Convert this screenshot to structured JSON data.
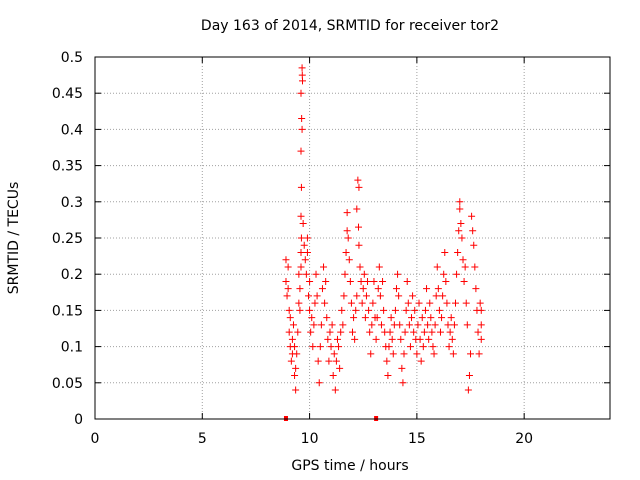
{
  "chart_data": {
    "type": "scatter",
    "title": "Day 163 of 2014, SRMTID for receiver tor2",
    "xlabel": "GPS time / hours",
    "ylabel": "SRMTID / TECUs",
    "xlim": [
      0,
      24
    ],
    "ylim": [
      0,
      0.5
    ],
    "x_ticks": [
      {
        "value": 0,
        "label": "0"
      },
      {
        "value": 5,
        "label": "5"
      },
      {
        "value": 10,
        "label": "10"
      },
      {
        "value": 15,
        "label": "15"
      },
      {
        "value": 20,
        "label": "20"
      }
    ],
    "y_ticks": [
      {
        "value": 0,
        "label": "0"
      },
      {
        "value": 0.05,
        "label": "0.05"
      },
      {
        "value": 0.1,
        "label": "0.1"
      },
      {
        "value": 0.15,
        "label": "0.15"
      },
      {
        "value": 0.2,
        "label": "0.2"
      },
      {
        "value": 0.25,
        "label": "0.25"
      },
      {
        "value": 0.3,
        "label": "0.3"
      },
      {
        "value": 0.35,
        "label": "0.35"
      },
      {
        "value": 0.4,
        "label": "0.4"
      },
      {
        "value": 0.45,
        "label": "0.45"
      },
      {
        "value": 0.5,
        "label": "0.5"
      }
    ],
    "grid": true,
    "marker": "+",
    "color": "#ff0000",
    "series": [
      {
        "points": [
          [
            8.9,
            0.22
          ],
          [
            8.9,
            0.19
          ],
          [
            8.95,
            0.17
          ],
          [
            9.0,
            0.21
          ],
          [
            9.0,
            0.18
          ],
          [
            9.05,
            0.15
          ],
          [
            9.05,
            0.12
          ],
          [
            9.1,
            0.1
          ],
          [
            9.1,
            0.14
          ],
          [
            9.15,
            0.08
          ],
          [
            9.2,
            0.11
          ],
          [
            9.2,
            0.09
          ],
          [
            9.25,
            0.13
          ],
          [
            9.3,
            0.06
          ],
          [
            9.3,
            0.1
          ],
          [
            9.35,
            0.04
          ],
          [
            9.35,
            0.07
          ],
          [
            9.4,
            0.09
          ],
          [
            9.45,
            0.12
          ],
          [
            9.5,
            0.16
          ],
          [
            9.5,
            0.2
          ],
          [
            9.55,
            0.15
          ],
          [
            9.55,
            0.18
          ],
          [
            9.6,
            0.23
          ],
          [
            9.6,
            0.21
          ],
          [
            9.62,
            0.25
          ],
          [
            9.65,
            0.485
          ],
          [
            9.66,
            0.475
          ],
          [
            9.67,
            0.467
          ],
          [
            9.6,
            0.45
          ],
          [
            9.63,
            0.415
          ],
          [
            9.65,
            0.4
          ],
          [
            9.6,
            0.37
          ],
          [
            9.62,
            0.32
          ],
          [
            9.6,
            0.28
          ],
          [
            9.7,
            0.27
          ],
          [
            9.75,
            0.24
          ],
          [
            9.8,
            0.22
          ],
          [
            9.85,
            0.2
          ],
          [
            9.9,
            0.25
          ],
          [
            9.9,
            0.23
          ],
          [
            9.95,
            0.17
          ],
          [
            10.0,
            0.15
          ],
          [
            10.0,
            0.19
          ],
          [
            10.05,
            0.12
          ],
          [
            10.1,
            0.14
          ],
          [
            10.15,
            0.1
          ],
          [
            10.2,
            0.13
          ],
          [
            10.25,
            0.16
          ],
          [
            10.3,
            0.2
          ],
          [
            10.35,
            0.17
          ],
          [
            10.4,
            0.08
          ],
          [
            10.45,
            0.05
          ],
          [
            10.5,
            0.1
          ],
          [
            10.55,
            0.13
          ],
          [
            10.6,
            0.18
          ],
          [
            10.65,
            0.21
          ],
          [
            10.7,
            0.16
          ],
          [
            10.75,
            0.19
          ],
          [
            10.8,
            0.14
          ],
          [
            10.85,
            0.11
          ],
          [
            10.9,
            0.08
          ],
          [
            10.95,
            0.12
          ],
          [
            11.0,
            0.1
          ],
          [
            11.05,
            0.13
          ],
          [
            11.1,
            0.06
          ],
          [
            11.15,
            0.09
          ],
          [
            11.2,
            0.04
          ],
          [
            11.25,
            0.08
          ],
          [
            11.3,
            0.11
          ],
          [
            11.35,
            0.1
          ],
          [
            11.4,
            0.07
          ],
          [
            11.45,
            0.12
          ],
          [
            11.5,
            0.15
          ],
          [
            11.55,
            0.13
          ],
          [
            11.6,
            0.17
          ],
          [
            11.65,
            0.2
          ],
          [
            11.7,
            0.23
          ],
          [
            11.75,
            0.26
          ],
          [
            11.75,
            0.285
          ],
          [
            11.8,
            0.25
          ],
          [
            11.85,
            0.22
          ],
          [
            11.9,
            0.19
          ],
          [
            11.95,
            0.16
          ],
          [
            12.0,
            0.12
          ],
          [
            12.05,
            0.14
          ],
          [
            12.1,
            0.11
          ],
          [
            12.15,
            0.15
          ],
          [
            12.2,
            0.17
          ],
          [
            12.2,
            0.29
          ],
          [
            12.25,
            0.33
          ],
          [
            12.3,
            0.32
          ],
          [
            12.28,
            0.265
          ],
          [
            12.3,
            0.24
          ],
          [
            12.35,
            0.21
          ],
          [
            12.4,
            0.19
          ],
          [
            12.45,
            0.16
          ],
          [
            12.5,
            0.18
          ],
          [
            12.55,
            0.2
          ],
          [
            12.6,
            0.14
          ],
          [
            12.65,
            0.17
          ],
          [
            12.7,
            0.19
          ],
          [
            12.75,
            0.15
          ],
          [
            12.8,
            0.12
          ],
          [
            12.85,
            0.09
          ],
          [
            12.9,
            0.13
          ],
          [
            12.95,
            0.16
          ],
          [
            13.0,
            0.19
          ],
          [
            13.05,
            0.14
          ],
          [
            13.1,
            0.11
          ],
          [
            13.15,
            0.14
          ],
          [
            13.2,
            0.18
          ],
          [
            13.25,
            0.21
          ],
          [
            13.3,
            0.17
          ],
          [
            13.35,
            0.13
          ],
          [
            13.4,
            0.19
          ],
          [
            13.45,
            0.15
          ],
          [
            13.5,
            0.12
          ],
          [
            13.55,
            0.1
          ],
          [
            13.6,
            0.08
          ],
          [
            13.65,
            0.06
          ],
          [
            13.7,
            0.1
          ],
          [
            13.75,
            0.12
          ],
          [
            13.8,
            0.14
          ],
          [
            13.85,
            0.11
          ],
          [
            13.9,
            0.09
          ],
          [
            13.95,
            0.13
          ],
          [
            14.0,
            0.15
          ],
          [
            14.05,
            0.18
          ],
          [
            14.1,
            0.2
          ],
          [
            14.15,
            0.17
          ],
          [
            14.2,
            0.13
          ],
          [
            14.25,
            0.11
          ],
          [
            14.3,
            0.07
          ],
          [
            14.35,
            0.05
          ],
          [
            14.4,
            0.09
          ],
          [
            14.45,
            0.12
          ],
          [
            14.5,
            0.15
          ],
          [
            14.55,
            0.19
          ],
          [
            14.6,
            0.16
          ],
          [
            14.65,
            0.13
          ],
          [
            14.7,
            0.1
          ],
          [
            14.75,
            0.14
          ],
          [
            14.8,
            0.17
          ],
          [
            14.85,
            0.12
          ],
          [
            14.9,
            0.15
          ],
          [
            14.95,
            0.11
          ],
          [
            15.0,
            0.09
          ],
          [
            15.05,
            0.13
          ],
          [
            15.1,
            0.16
          ],
          [
            15.15,
            0.11
          ],
          [
            15.2,
            0.08
          ],
          [
            15.25,
            0.14
          ],
          [
            15.3,
            0.1
          ],
          [
            15.35,
            0.12
          ],
          [
            15.4,
            0.15
          ],
          [
            15.45,
            0.18
          ],
          [
            15.5,
            0.13
          ],
          [
            15.55,
            0.11
          ],
          [
            15.6,
            0.16
          ],
          [
            15.65,
            0.14
          ],
          [
            15.7,
            0.12
          ],
          [
            15.75,
            0.1
          ],
          [
            15.8,
            0.09
          ],
          [
            15.85,
            0.13
          ],
          [
            15.9,
            0.17
          ],
          [
            15.95,
            0.21
          ],
          [
            16.0,
            0.18
          ],
          [
            16.05,
            0.15
          ],
          [
            16.1,
            0.12
          ],
          [
            16.15,
            0.14
          ],
          [
            16.2,
            0.17
          ],
          [
            16.25,
            0.2
          ],
          [
            16.3,
            0.23
          ],
          [
            16.35,
            0.19
          ],
          [
            16.4,
            0.16
          ],
          [
            16.45,
            0.13
          ],
          [
            16.5,
            0.1
          ],
          [
            16.55,
            0.12
          ],
          [
            16.6,
            0.14
          ],
          [
            16.65,
            0.11
          ],
          [
            16.7,
            0.09
          ],
          [
            16.75,
            0.13
          ],
          [
            16.8,
            0.16
          ],
          [
            16.85,
            0.2
          ],
          [
            16.9,
            0.23
          ],
          [
            16.95,
            0.26
          ],
          [
            17.0,
            0.29
          ],
          [
            17.0,
            0.3
          ],
          [
            17.05,
            0.27
          ],
          [
            17.1,
            0.25
          ],
          [
            17.15,
            0.22
          ],
          [
            17.2,
            0.19
          ],
          [
            17.25,
            0.21
          ],
          [
            17.3,
            0.16
          ],
          [
            17.35,
            0.13
          ],
          [
            17.4,
            0.04
          ],
          [
            17.45,
            0.06
          ],
          [
            17.5,
            0.09
          ],
          [
            17.55,
            0.28
          ],
          [
            17.6,
            0.26
          ],
          [
            17.65,
            0.24
          ],
          [
            17.7,
            0.21
          ],
          [
            17.75,
            0.18
          ],
          [
            17.8,
            0.15
          ],
          [
            17.85,
            0.12
          ],
          [
            17.9,
            0.09
          ],
          [
            17.95,
            0.16
          ],
          [
            18.0,
            0.15
          ],
          [
            18.0,
            0.13
          ],
          [
            18.0,
            0.11
          ]
        ]
      },
      {
        "points": [
          [
            8.9,
            0.0
          ],
          [
            13.1,
            0.0
          ]
        ]
      }
    ]
  }
}
